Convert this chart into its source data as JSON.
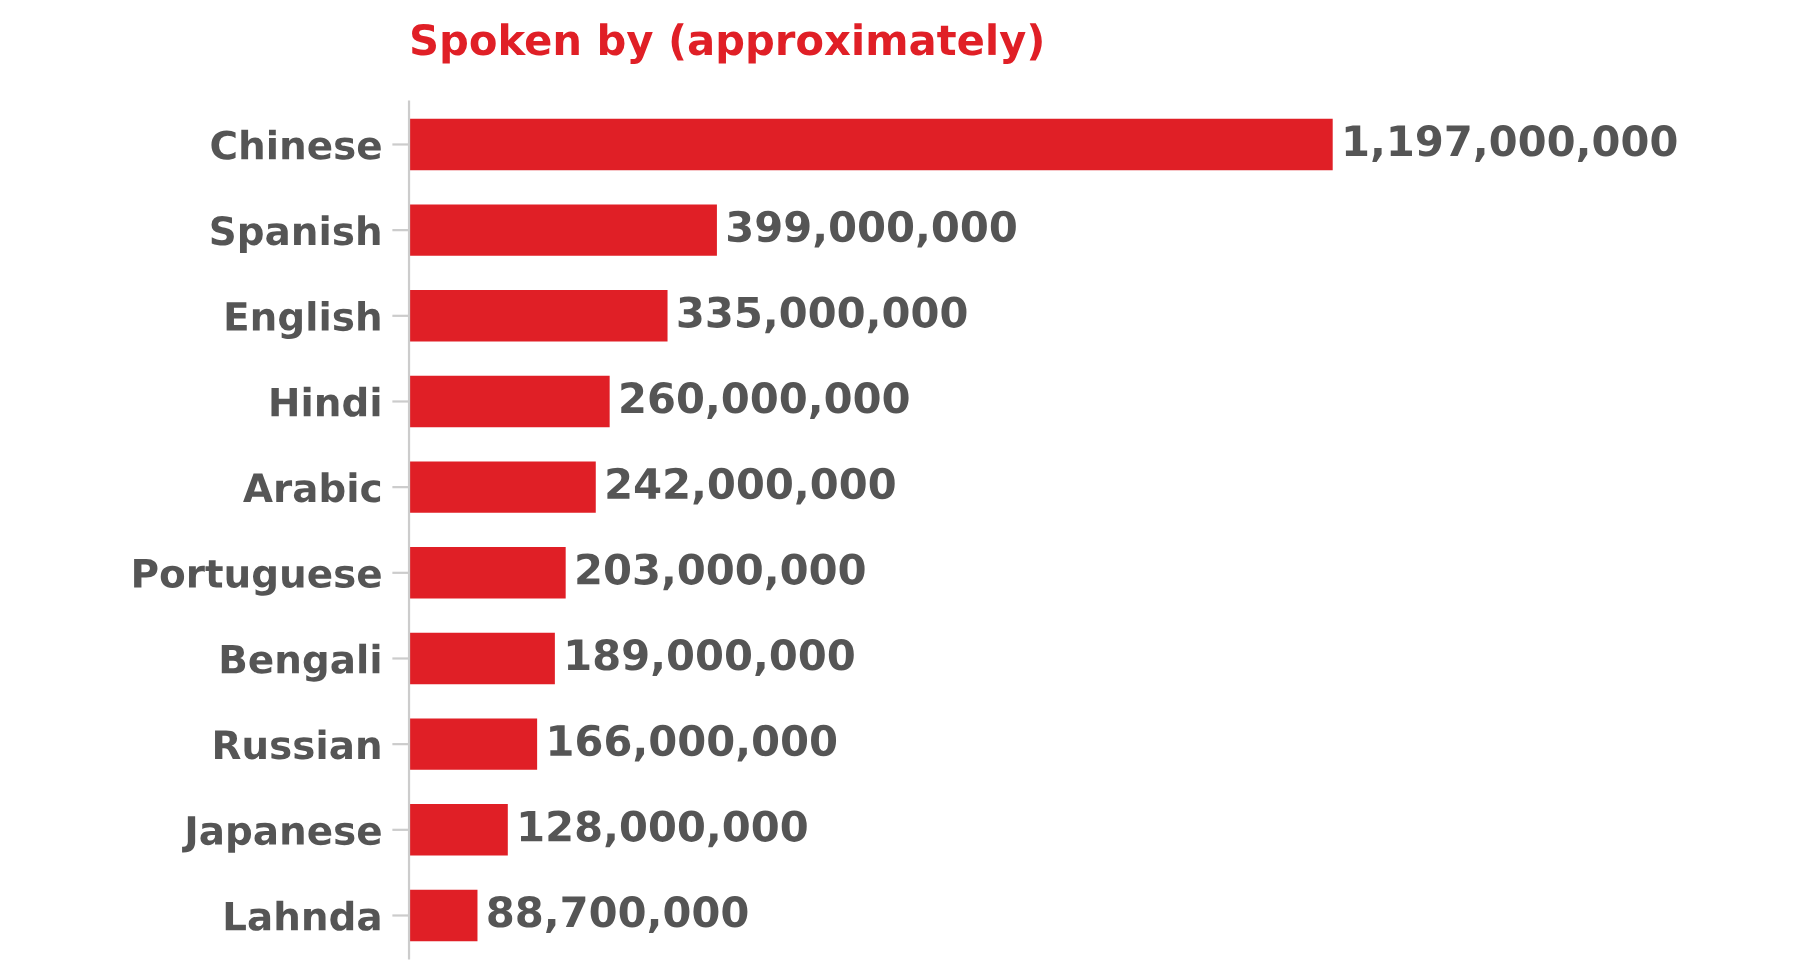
{
  "chart_data": {
    "type": "bar",
    "orientation": "horizontal",
    "title": "Spoken by (approximately)",
    "categories": [
      "Chinese",
      "Spanish",
      "English",
      "Hindi",
      "Arabic",
      "Portuguese",
      "Bengali",
      "Russian",
      "Japanese",
      "Lahnda"
    ],
    "values": [
      1197000000,
      399000000,
      335000000,
      260000000,
      242000000,
      203000000,
      189000000,
      166000000,
      128000000,
      88700000
    ],
    "value_labels": [
      "1,197,000,000",
      "399,000,000",
      "335,000,000",
      "260,000,000",
      "242,000,000",
      "203,000,000",
      "189,000,000",
      "166,000,000",
      "128,000,000",
      "88,700,000"
    ],
    "color": "#e01f26",
    "tick_labels": "y"
  }
}
